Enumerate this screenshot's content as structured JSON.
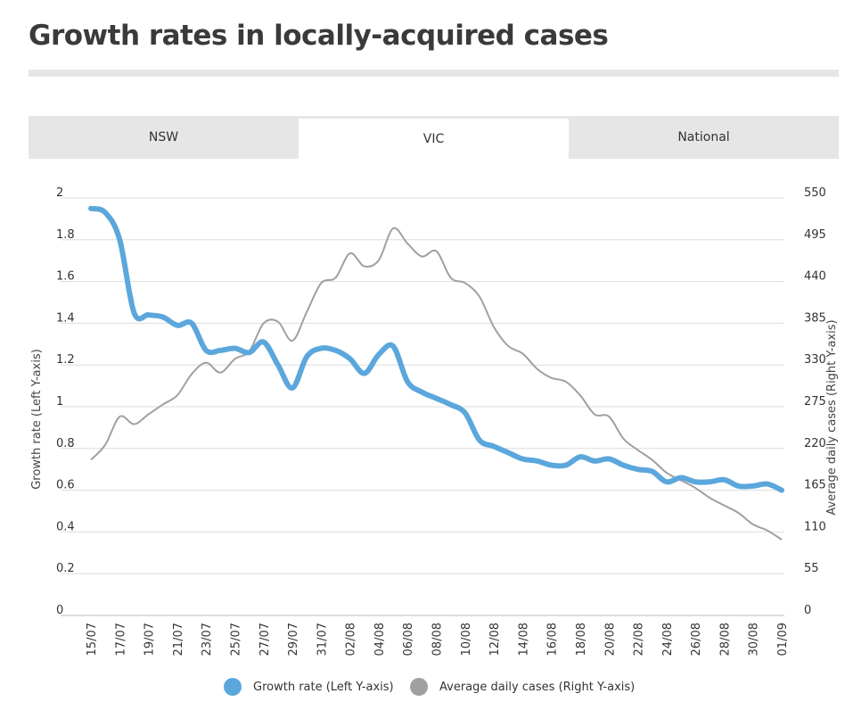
{
  "title": "Growth rates in locally-acquired cases",
  "tabs": [
    {
      "label": "NSW",
      "active": false
    },
    {
      "label": "VIC",
      "active": true
    },
    {
      "label": "National",
      "active": false
    }
  ],
  "colors": {
    "growth": "#5ba7dc",
    "cases": "#a0a0a0",
    "grid": "#dddddd"
  },
  "chart_data": {
    "type": "line",
    "ylabel": "Growth rate (Left Y-axis)",
    "ylabel_right": "Average daily cases (Right Y-axis)",
    "ylim": [
      0,
      2
    ],
    "ylim_right": [
      0,
      550
    ],
    "yticks": [
      "0",
      "0.2",
      "0.4",
      "0.6",
      "0.8",
      "1",
      "1.2",
      "1.4",
      "1.6",
      "1.8",
      "2"
    ],
    "yticks_right": [
      "0",
      "55",
      "110",
      "165",
      "220",
      "275",
      "330",
      "385",
      "440",
      "495",
      "550"
    ],
    "xticks": [
      "15/07",
      "17/07",
      "19/07",
      "21/07",
      "23/07",
      "25/07",
      "27/07",
      "29/07",
      "31/07",
      "02/08",
      "04/08",
      "06/08",
      "08/08",
      "10/08",
      "12/08",
      "14/08",
      "16/08",
      "18/08",
      "20/08",
      "22/08",
      "24/08",
      "26/08",
      "28/08",
      "30/08",
      "01/09"
    ],
    "grid": true,
    "legend_position": "bottom",
    "series": [
      {
        "name": "Growth rate (Left Y-axis)",
        "axis": "left",
        "values": [
          1.95,
          1.93,
          1.8,
          1.45,
          1.44,
          1.43,
          1.39,
          1.4,
          1.27,
          1.27,
          1.28,
          1.26,
          1.31,
          1.2,
          1.09,
          1.24,
          1.28,
          1.27,
          1.23,
          1.16,
          1.25,
          1.29,
          1.12,
          1.07,
          1.04,
          1.01,
          0.97,
          0.84,
          0.81,
          0.78,
          0.75,
          0.74,
          0.72,
          0.72,
          0.76,
          0.74,
          0.75,
          0.72,
          0.7,
          0.69,
          0.64,
          0.66,
          0.64,
          0.64,
          0.65,
          0.62,
          0.62,
          0.63,
          0.6
        ]
      },
      {
        "name": "Average daily cases (Right Y-axis)",
        "axis": "right",
        "values": [
          205,
          225,
          262,
          252,
          265,
          278,
          290,
          318,
          333,
          320,
          338,
          348,
          385,
          387,
          362,
          400,
          438,
          445,
          477,
          460,
          468,
          510,
          490,
          473,
          480,
          445,
          438,
          420,
          380,
          355,
          345,
          325,
          313,
          308,
          290,
          265,
          262,
          233,
          218,
          205,
          188,
          178,
          168,
          155,
          145,
          135,
          120,
          112,
          100
        ]
      }
    ]
  }
}
